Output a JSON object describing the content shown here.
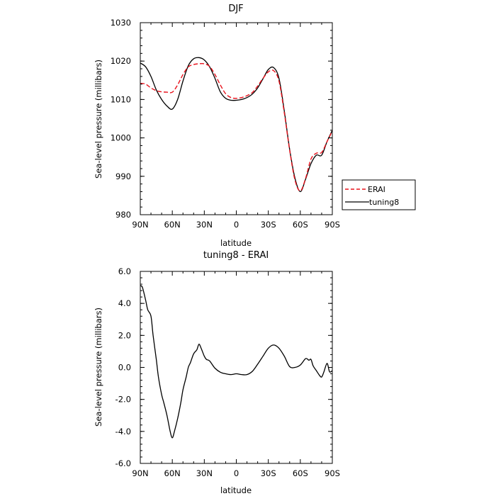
{
  "chart_data": [
    {
      "type": "line",
      "title": "DJF",
      "xlabel": "latitude",
      "ylabel": "Sea-level pressure (millibars)",
      "xlim": [
        90,
        -90
      ],
      "ylim": [
        980,
        1030
      ],
      "xticks": [
        90,
        60,
        30,
        0,
        -30,
        -60,
        -90
      ],
      "xtick_labels": [
        "90N",
        "60N",
        "30N",
        "0",
        "30S",
        "60S",
        "90S"
      ],
      "yticks": [
        980,
        990,
        1000,
        1010,
        1020,
        1030
      ],
      "ytick_labels": [
        "980",
        "990",
        "1000",
        "1010",
        "1020",
        "1030"
      ],
      "legend_position": "outside-right",
      "series": [
        {
          "name": "ERAI",
          "color": "#e8121c",
          "dash": "dashed",
          "x": [
            90,
            85,
            80,
            75,
            70,
            65,
            60,
            55,
            50,
            45,
            40,
            35,
            30,
            25,
            20,
            15,
            10,
            5,
            0,
            -5,
            -10,
            -15,
            -20,
            -25,
            -30,
            -35,
            -40,
            -45,
            -50,
            -55,
            -60,
            -65,
            -70,
            -75,
            -80,
            -85,
            -90
          ],
          "y": [
            1014.2,
            1014.0,
            1013.0,
            1012.3,
            1012.0,
            1011.9,
            1011.9,
            1013.8,
            1016.5,
            1018.5,
            1019.1,
            1019.3,
            1019.3,
            1018.6,
            1016.5,
            1013.8,
            1011.5,
            1010.5,
            1010.3,
            1010.5,
            1011.0,
            1011.8,
            1013.5,
            1015.5,
            1017.2,
            1017.5,
            1014.8,
            1006.5,
            996.8,
            989.0,
            986.2,
            989.5,
            994.5,
            996.0,
            996.2,
            999.0,
            1001.8
          ]
        },
        {
          "name": "tuning8",
          "color": "#000000",
          "dash": "solid",
          "x": [
            90,
            85,
            80,
            75,
            70,
            65,
            60,
            55,
            50,
            45,
            40,
            35,
            30,
            25,
            20,
            15,
            10,
            5,
            0,
            -5,
            -10,
            -15,
            -20,
            -25,
            -30,
            -35,
            -40,
            -45,
            -50,
            -55,
            -60,
            -65,
            -70,
            -75,
            -80,
            -85,
            -90
          ],
          "y": [
            1019.5,
            1018.5,
            1016.0,
            1012.5,
            1010.0,
            1008.3,
            1007.5,
            1010.0,
            1014.8,
            1018.8,
            1020.6,
            1020.9,
            1020.3,
            1018.5,
            1015.5,
            1012.0,
            1010.3,
            1009.8,
            1009.8,
            1010.0,
            1010.5,
            1011.4,
            1013.0,
            1015.4,
            1017.8,
            1018.3,
            1015.5,
            1007.0,
            997.0,
            989.5,
            986.0,
            989.3,
            993.3,
            995.5,
            995.5,
            999.0,
            1002.0
          ]
        }
      ]
    },
    {
      "type": "line",
      "title": "tuning8 - ERAI",
      "xlabel": "latitude",
      "ylabel": "Sea-level pressure (millibars)",
      "xlim": [
        90,
        -90
      ],
      "ylim": [
        -6,
        6
      ],
      "xticks": [
        90,
        60,
        30,
        0,
        -30,
        -60,
        -90
      ],
      "xtick_labels": [
        "90N",
        "60N",
        "30N",
        "0",
        "30S",
        "60S",
        "90S"
      ],
      "yticks": [
        -6,
        -4,
        -2,
        0,
        2,
        4,
        6
      ],
      "ytick_labels": [
        "-6.0",
        "-4.0",
        "-2.0",
        "0.0",
        "2.0",
        "4.0",
        "6.0"
      ],
      "series": [
        {
          "color": "#000000",
          "dash": "solid",
          "x": [
            90,
            88,
            85,
            83,
            80,
            78,
            75,
            73,
            70,
            68,
            65,
            62,
            60,
            58,
            55,
            52,
            50,
            47,
            45,
            43,
            40,
            37,
            35,
            33,
            30,
            28,
            25,
            20,
            15,
            10,
            5,
            0,
            -5,
            -10,
            -15,
            -20,
            -25,
            -30,
            -35,
            -40,
            -45,
            -50,
            -55,
            -60,
            -65,
            -68,
            -70,
            -72,
            -75,
            -78,
            -80,
            -82,
            -85,
            -87,
            -88,
            -90
          ],
          "y": [
            5.1,
            5.0,
            4.2,
            3.6,
            3.2,
            2.0,
            0.5,
            -0.6,
            -1.7,
            -2.2,
            -3.0,
            -4.0,
            -4.4,
            -4.0,
            -3.2,
            -2.2,
            -1.4,
            -0.6,
            0.0,
            0.3,
            0.85,
            1.1,
            1.45,
            1.2,
            0.7,
            0.5,
            0.4,
            -0.05,
            -0.3,
            -0.4,
            -0.45,
            -0.4,
            -0.45,
            -0.45,
            -0.25,
            0.2,
            0.7,
            1.2,
            1.4,
            1.2,
            0.7,
            0.05,
            0.0,
            0.15,
            0.55,
            0.45,
            0.5,
            0.1,
            -0.2,
            -0.5,
            -0.6,
            -0.3,
            0.25,
            -0.2,
            -0.3,
            -0.2
          ]
        }
      ]
    }
  ]
}
